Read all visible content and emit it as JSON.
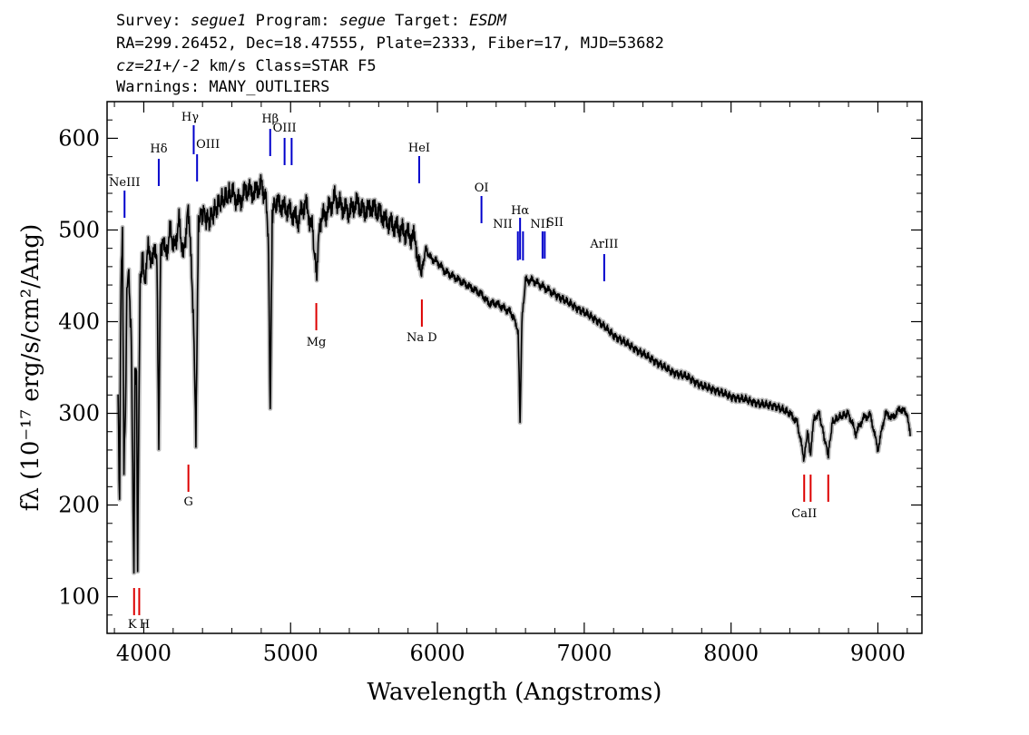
{
  "header": {
    "survey_label": "Survey:",
    "survey_value": "segue1",
    "program_label": "Program:",
    "program_value": "segue",
    "target_label": "Target:",
    "target_value": "ESDM",
    "line2": "RA=299.26452, Dec=18.47555, Plate=2333, Fiber=17, MJD=53682",
    "cz_value": "cz=21+/-2",
    "cz_rest": " km/s Class=STAR F5",
    "line4": "Warnings: MANY_OUTLIERS"
  },
  "chart_data": {
    "type": "line",
    "xlabel": "Wavelength (Angstroms)",
    "ylabel": "fλ (10⁻¹⁷ erg/s/cm²/Ang)",
    "xlim": [
      3750,
      9300
    ],
    "ylim": [
      60,
      640
    ],
    "x_ticks": [
      4000,
      5000,
      6000,
      7000,
      8000,
      9000
    ],
    "x_tick_labels": [
      "4000",
      "5000",
      "6000",
      "7000",
      "8000",
      "9000"
    ],
    "y_ticks": [
      100,
      200,
      300,
      400,
      500,
      600
    ],
    "y_tick_labels": [
      "100",
      "200",
      "300",
      "400",
      "500",
      "600"
    ],
    "series": [
      {
        "color": "#000000",
        "x": [
          3825,
          3835,
          3845,
          3855,
          3865,
          3875,
          3885,
          3895,
          3905,
          3915,
          3925,
          3933,
          3940,
          3950,
          3958,
          3968,
          3975,
          3985,
          3995,
          4010,
          4030,
          4050,
          4070,
          4090,
          4102,
          4115,
          4130,
          4150,
          4180,
          4210,
          4240,
          4270,
          4300,
          4320,
          4340,
          4355,
          4372,
          4400,
          4440,
          4480,
          4520,
          4560,
          4600,
          4650,
          4700,
          4750,
          4800,
          4830,
          4850,
          4861,
          4875,
          4900,
          4950,
          5000,
          5050,
          5100,
          5150,
          5175,
          5200,
          5250,
          5300,
          5350,
          5400,
          5450,
          5500,
          5550,
          5600,
          5650,
          5700,
          5750,
          5800,
          5850,
          5876,
          5895,
          5920,
          5950,
          6000,
          6050,
          6100,
          6150,
          6200,
          6250,
          6300,
          6350,
          6400,
          6450,
          6500,
          6530,
          6550,
          6563,
          6575,
          6600,
          6650,
          6700,
          6750,
          6800,
          6900,
          7000,
          7100,
          7200,
          7300,
          7400,
          7500,
          7600,
          7700,
          7800,
          7900,
          8000,
          8100,
          8200,
          8300,
          8400,
          8450,
          8498,
          8520,
          8542,
          8565,
          8600,
          8640,
          8662,
          8690,
          8730,
          8800,
          8850,
          8900,
          8950,
          9000,
          9050,
          9100,
          9150,
          9200,
          9220
        ],
        "values": [
          320,
          200,
          450,
          490,
          240,
          300,
          430,
          460,
          420,
          380,
          240,
          125,
          340,
          350,
          130,
          330,
          440,
          460,
          470,
          440,
          480,
          470,
          480,
          460,
          270,
          480,
          490,
          470,
          500,
          480,
          510,
          470,
          520,
          480,
          400,
          265,
          510,
          520,
          510,
          520,
          530,
          535,
          540,
          530,
          545,
          540,
          550,
          535,
          480,
          300,
          520,
          530,
          525,
          520,
          510,
          530,
          500,
          450,
          510,
          520,
          535,
          525,
          520,
          530,
          520,
          525,
          520,
          510,
          505,
          500,
          495,
          490,
          460,
          455,
          480,
          470,
          465,
          455,
          450,
          445,
          440,
          435,
          430,
          420,
          420,
          415,
          410,
          400,
          390,
          290,
          400,
          445,
          445,
          440,
          435,
          430,
          420,
          410,
          400,
          385,
          375,
          365,
          355,
          345,
          340,
          330,
          325,
          318,
          315,
          310,
          308,
          300,
          290,
          250,
          280,
          255,
          295,
          300,
          270,
          255,
          290,
          295,
          300,
          278,
          295,
          298,
          260,
          300,
          295,
          305,
          300,
          275
        ]
      }
    ],
    "emission_lines": [
      {
        "label": "NeIII",
        "x": 3869
      },
      {
        "label": "Hδ",
        "x": 4102
      },
      {
        "label": "Hγ",
        "x": 4340
      },
      {
        "label": "OIII",
        "x": 4363
      },
      {
        "label": "Hβ",
        "x": 4861
      },
      {
        "label": "OIII",
        "x": 4959
      },
      {
        "label": "",
        "x": 5007
      },
      {
        "label": "HeI",
        "x": 5876
      },
      {
        "label": "OI",
        "x": 6300
      },
      {
        "label": "NII",
        "x": 6548
      },
      {
        "label": "Hα",
        "x": 6563
      },
      {
        "label": "NII",
        "x": 6583
      },
      {
        "label": "SII",
        "x": 6716
      },
      {
        "label": "",
        "x": 6731
      },
      {
        "label": "ArIII",
        "x": 7136
      }
    ],
    "absorption_lines": [
      {
        "label": "K",
        "x": 3934
      },
      {
        "label": "H",
        "x": 3969
      },
      {
        "label": "G",
        "x": 4304
      },
      {
        "label": "Mg",
        "x": 5175
      },
      {
        "label": "Na D",
        "x": 5894
      },
      {
        "label": "CaII",
        "x": 8498
      },
      {
        "label": "",
        "x": 8542
      },
      {
        "label": "",
        "x": 8662
      }
    ],
    "emission_color": "#0000cc",
    "absorption_color": "#dd0000",
    "grid": false
  }
}
